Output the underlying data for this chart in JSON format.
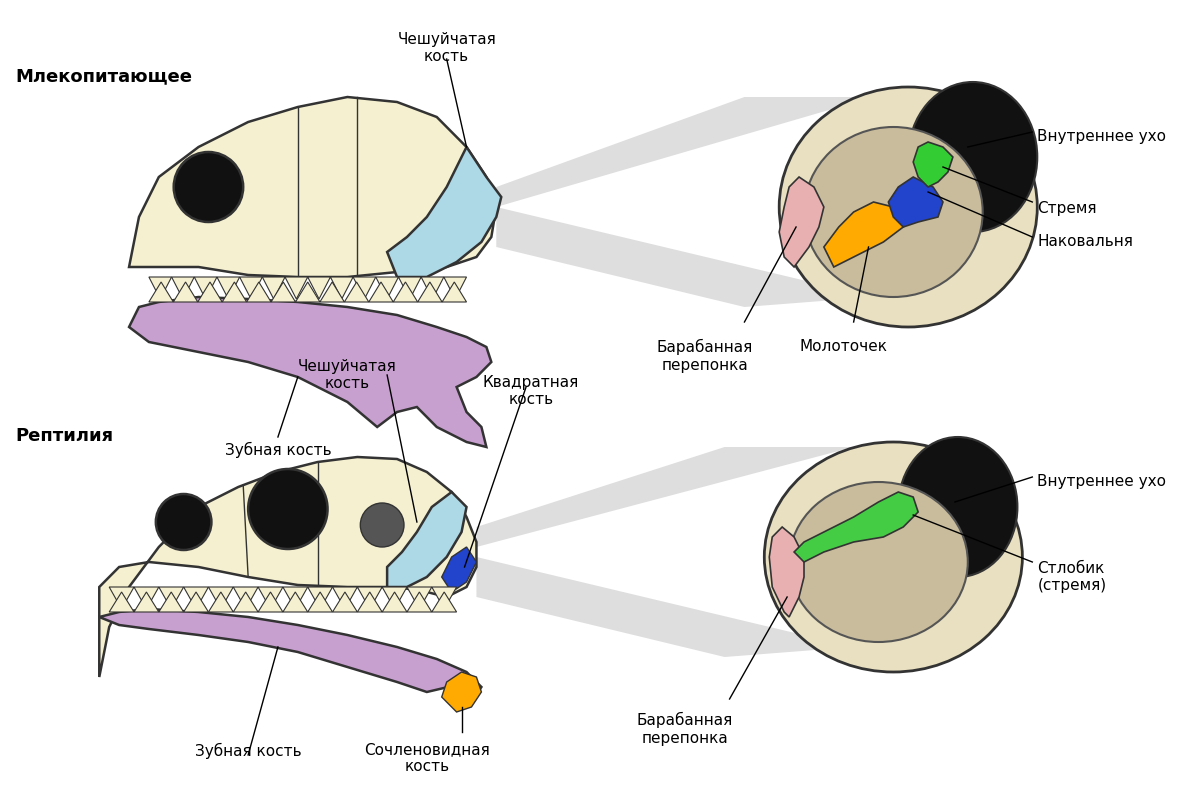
{
  "bg_color": "#ffffff",
  "skull_color": "#f5f0d0",
  "skull_outline": "#333333",
  "squamosal_color": "#add8e6",
  "dental_color": "#c8a0d0",
  "mammal_label": "Млекопитающее",
  "reptile_label": "Рептилия",
  "squamosal_label": "Чешуйчатая\nкость",
  "quadrate_label": "Квадратная\nкость",
  "dental_mammal_label": "Зубная кость",
  "dental_reptile_label": "Зубная кость",
  "articular_label": "Сочленовидная\nкость",
  "tympanic_mammal_label": "Барабанная\nперепонка",
  "tympanic_reptile_label": "Барабанная\nперепонка",
  "malleus_label": "Молоточек",
  "incus_label": "Наковальня",
  "stapes_label": "Стремя",
  "stlobik_label": "Стлобик\n(стремя)",
  "inner_ear_mammal_label": "Внутреннее ухо",
  "inner_ear_reptile_label": "Внутреннее ухо"
}
